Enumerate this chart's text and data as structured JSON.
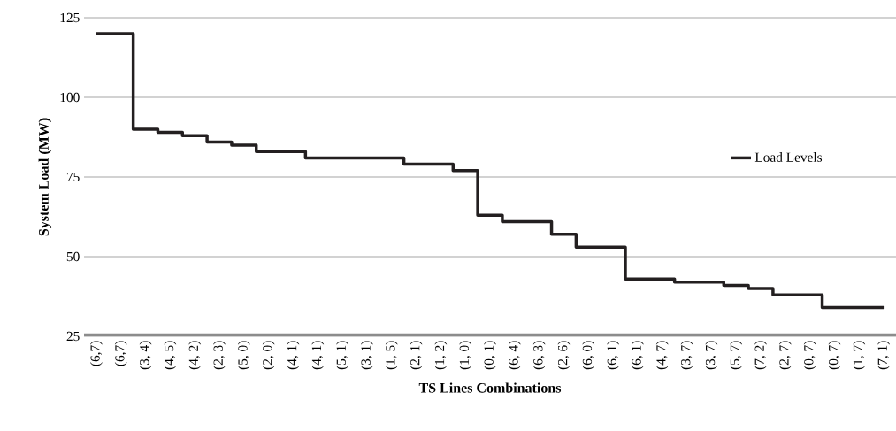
{
  "chart_data": {
    "type": "step",
    "xlabel": "TS Lines Combinations",
    "ylabel": "System Load (MW)",
    "categories": [
      "(6,7)",
      "(6,7)",
      "(3, 4)",
      "(4, 5)",
      "(4, 2)",
      "(2, 3)",
      "(5, 0)",
      "(2, 0)",
      "(4, 1)",
      "(4, 1)",
      "(5, 1)",
      "(3, 1)",
      "(1, 5)",
      "(2, 1)",
      "(1, 2)",
      "(1, 0)",
      "(0, 1)",
      "(6, 4)",
      "(6, 3)",
      "(2, 6)",
      "(6, 0)",
      "(6, 1)",
      "(6, 1)",
      "(4, 7)",
      "(3, 7)",
      "(3, 7)",
      "(5, 7)",
      "(7, 2)",
      "(2, 7)",
      "(0, 7)",
      "(0, 7)",
      "(1, 7)",
      "(7, 1)"
    ],
    "series": [
      {
        "name": "Load Levels",
        "color": "#231f20",
        "values": [
          120,
          120,
          90,
          89,
          88,
          86,
          85,
          83,
          83,
          81,
          81,
          81,
          81,
          79,
          79,
          77,
          63,
          61,
          61,
          57,
          53,
          53,
          43,
          43,
          42,
          42,
          41,
          40,
          38,
          38,
          34,
          34,
          34
        ]
      }
    ],
    "ylim": [
      25,
      125
    ],
    "yticks": [
      25,
      50,
      75,
      100,
      125
    ],
    "grid": "y",
    "legend": "right"
  }
}
